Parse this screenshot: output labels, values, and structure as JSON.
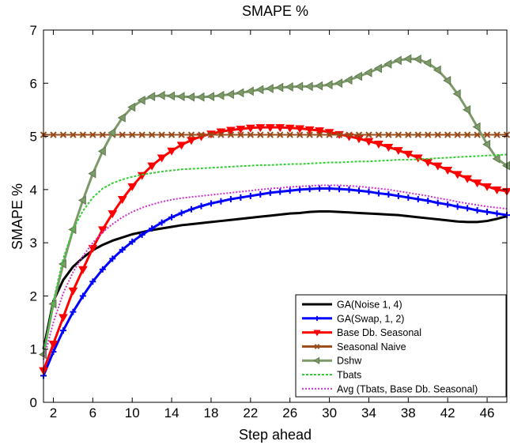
{
  "chart_data": {
    "type": "line",
    "title": "SMAPE %",
    "xlabel": "Step ahead",
    "ylabel": "SMAPE %",
    "xlim": [
      1,
      48
    ],
    "ylim": [
      0,
      7
    ],
    "xticks": [
      2,
      6,
      10,
      14,
      18,
      22,
      26,
      30,
      34,
      38,
      42,
      46
    ],
    "yticks": [
      0,
      1,
      2,
      3,
      4,
      5,
      6,
      7
    ],
    "grid": false,
    "legend_position": "bottom-right",
    "x": [
      1,
      2,
      3,
      4,
      5,
      6,
      7,
      8,
      9,
      10,
      11,
      12,
      13,
      14,
      15,
      16,
      17,
      18,
      19,
      20,
      21,
      22,
      23,
      24,
      25,
      26,
      27,
      28,
      29,
      30,
      31,
      32,
      33,
      34,
      35,
      36,
      37,
      38,
      39,
      40,
      41,
      42,
      43,
      44,
      45,
      46,
      47,
      48
    ],
    "series": [
      {
        "name": "GA(Noise 1, 4)",
        "color": "#000000",
        "marker": "none",
        "values": [
          1.0,
          1.9,
          2.3,
          2.55,
          2.72,
          2.86,
          2.96,
          3.04,
          3.1,
          3.16,
          3.2,
          3.24,
          3.27,
          3.3,
          3.33,
          3.35,
          3.37,
          3.39,
          3.41,
          3.43,
          3.45,
          3.47,
          3.49,
          3.51,
          3.53,
          3.55,
          3.56,
          3.58,
          3.59,
          3.59,
          3.58,
          3.57,
          3.56,
          3.55,
          3.54,
          3.53,
          3.52,
          3.5,
          3.48,
          3.46,
          3.44,
          3.42,
          3.4,
          3.39,
          3.39,
          3.41,
          3.45,
          3.5
        ]
      },
      {
        "name": "GA(Swap, 1, 2)",
        "color": "#0000ff",
        "marker": "plus",
        "values": [
          0.5,
          0.95,
          1.35,
          1.7,
          2.0,
          2.27,
          2.5,
          2.7,
          2.87,
          3.02,
          3.15,
          3.27,
          3.38,
          3.48,
          3.56,
          3.63,
          3.69,
          3.74,
          3.78,
          3.82,
          3.85,
          3.88,
          3.91,
          3.94,
          3.96,
          3.98,
          4.0,
          4.01,
          4.02,
          4.02,
          4.01,
          4.0,
          3.98,
          3.96,
          3.93,
          3.91,
          3.88,
          3.85,
          3.82,
          3.79,
          3.75,
          3.72,
          3.68,
          3.65,
          3.61,
          3.58,
          3.55,
          3.52
        ]
      },
      {
        "name": "Base Db. Seasonal",
        "color": "#ff0000",
        "marker": "triangle-down",
        "values": [
          0.6,
          1.1,
          1.6,
          2.1,
          2.5,
          2.9,
          3.25,
          3.55,
          3.82,
          4.06,
          4.27,
          4.45,
          4.6,
          4.73,
          4.84,
          4.93,
          5.0,
          5.05,
          5.09,
          5.12,
          5.14,
          5.16,
          5.17,
          5.17,
          5.17,
          5.16,
          5.15,
          5.13,
          5.11,
          5.08,
          5.04,
          5.0,
          4.96,
          4.91,
          4.86,
          4.8,
          4.74,
          4.67,
          4.6,
          4.52,
          4.45,
          4.37,
          4.29,
          4.21,
          4.13,
          4.06,
          4.0,
          3.97
        ]
      },
      {
        "name": "Seasonal Naive",
        "color": "#994c1a",
        "marker": "x",
        "values": [
          5.03,
          5.03,
          5.03,
          5.03,
          5.03,
          5.03,
          5.03,
          5.03,
          5.03,
          5.03,
          5.03,
          5.03,
          5.03,
          5.03,
          5.03,
          5.03,
          5.03,
          5.03,
          5.03,
          5.03,
          5.03,
          5.03,
          5.03,
          5.03,
          5.03,
          5.03,
          5.03,
          5.03,
          5.03,
          5.03,
          5.03,
          5.03,
          5.03,
          5.03,
          5.03,
          5.03,
          5.03,
          5.03,
          5.03,
          5.03,
          5.03,
          5.03,
          5.03,
          5.03,
          5.03,
          5.03,
          5.03,
          5.03
        ]
      },
      {
        "name": "Dshw",
        "color": "#7f9a6a",
        "marker": "triangle-left",
        "values": [
          0.9,
          1.85,
          2.6,
          3.25,
          3.8,
          4.3,
          4.72,
          5.07,
          5.35,
          5.55,
          5.68,
          5.75,
          5.77,
          5.76,
          5.75,
          5.74,
          5.74,
          5.75,
          5.77,
          5.79,
          5.82,
          5.85,
          5.88,
          5.9,
          5.92,
          5.93,
          5.94,
          5.94,
          5.95,
          5.97,
          6.0,
          6.06,
          6.13,
          6.2,
          6.28,
          6.36,
          6.43,
          6.46,
          6.45,
          6.38,
          6.25,
          6.05,
          5.8,
          5.5,
          5.18,
          4.85,
          4.58,
          4.45
        ]
      },
      {
        "name": "Tbats",
        "color": "#33cc33",
        "marker": "none",
        "values": [
          0.9,
          1.9,
          2.7,
          3.25,
          3.6,
          3.85,
          4.02,
          4.12,
          4.19,
          4.24,
          4.28,
          4.31,
          4.34,
          4.36,
          4.38,
          4.39,
          4.4,
          4.41,
          4.42,
          4.43,
          4.44,
          4.45,
          4.46,
          4.46,
          4.47,
          4.48,
          4.48,
          4.49,
          4.5,
          4.51,
          4.51,
          4.52,
          4.53,
          4.53,
          4.54,
          4.55,
          4.56,
          4.56,
          4.57,
          4.58,
          4.59,
          4.6,
          4.61,
          4.62,
          4.63,
          4.64,
          4.65,
          4.66
        ]
      },
      {
        "name": "Avg (Tbats, Base Db. Seasonal)",
        "color": "#cc33cc",
        "marker": "none",
        "values": [
          0.8,
          1.5,
          2.05,
          2.45,
          2.75,
          3.0,
          3.2,
          3.35,
          3.48,
          3.58,
          3.66,
          3.72,
          3.77,
          3.81,
          3.84,
          3.86,
          3.88,
          3.9,
          3.92,
          3.94,
          3.96,
          3.98,
          4.0,
          4.02,
          4.03,
          4.05,
          4.06,
          4.07,
          4.08,
          4.08,
          4.08,
          4.07,
          4.06,
          4.04,
          4.02,
          4.0,
          3.97,
          3.94,
          3.91,
          3.88,
          3.84,
          3.81,
          3.77,
          3.74,
          3.71,
          3.68,
          3.66,
          3.64
        ]
      }
    ]
  }
}
